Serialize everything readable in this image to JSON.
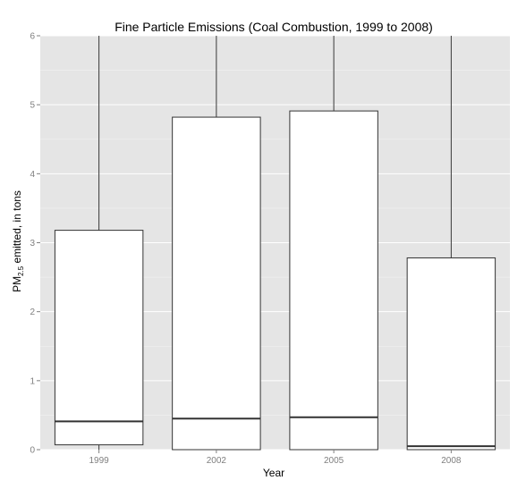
{
  "chart_data": {
    "type": "boxplot",
    "title": "Fine Particle Emissions (Coal Combustion, 1999 to 2008)",
    "xlabel": "Year",
    "ylabel": {
      "prefix": "PM",
      "subscript": "2.5",
      "suffix": " emitted, in tons"
    },
    "ylim": [
      0,
      6
    ],
    "yticks": [
      "0",
      "1",
      "2",
      "3",
      "4",
      "5",
      "6"
    ],
    "categories": [
      "1999",
      "2002",
      "2005",
      "2008"
    ],
    "boxes": [
      {
        "year": "1999",
        "lower_whisker": 0.0,
        "q1": 0.07,
        "median": 0.41,
        "q3": 3.18,
        "upper_whisker": 6.0
      },
      {
        "year": "2002",
        "lower_whisker": 0.0,
        "q1": 0.0,
        "median": 0.45,
        "q3": 4.82,
        "upper_whisker": 6.0
      },
      {
        "year": "2005",
        "lower_whisker": 0.0,
        "q1": 0.0,
        "median": 0.47,
        "q3": 4.91,
        "upper_whisker": 6.0
      },
      {
        "year": "2008",
        "lower_whisker": 0.0,
        "q1": 0.0,
        "median": 0.05,
        "q3": 2.78,
        "upper_whisker": 6.0
      }
    ],
    "grid": true,
    "panel_background": "#e5e5e5",
    "grid_color": "#ffffff",
    "box_fill": "#ffffff",
    "box_stroke": "#333333",
    "legend": "none"
  }
}
